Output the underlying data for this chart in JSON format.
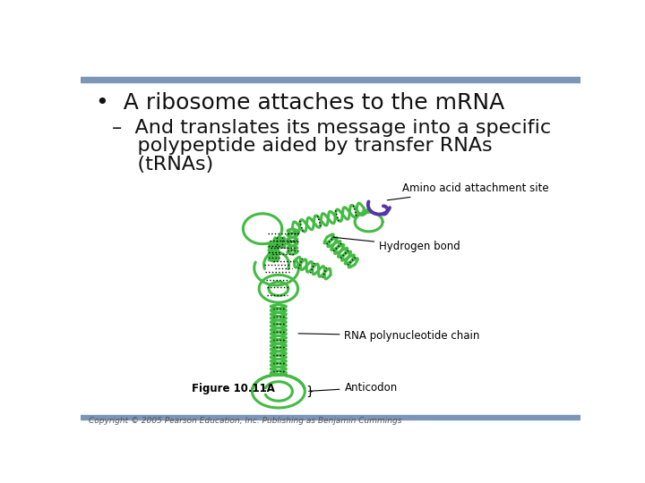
{
  "slide_bg": "#ffffff",
  "top_bar_color": "#7b96b8",
  "bottom_bar_color": "#7b96b8",
  "title_text": "•  A ribosome attaches to the mRNA",
  "subtitle_line1": "–  And translates its message into a specific",
  "subtitle_line2": "    polypeptide aided by transfer RNAs",
  "subtitle_line3": "    (tRNAs)",
  "title_fontsize": 18,
  "subtitle_fontsize": 16,
  "label_amino": "Amino acid attachment site",
  "label_hydrogen": "Hydrogen bond",
  "label_rna": "RNA polynucleotide chain",
  "label_anticodon": "Anticodon",
  "figure_label": "Figure 10.11A",
  "copyright": "Copyright © 2005 Pearson Education, Inc. Publishing as Benjamin Cummings",
  "green_color": "#44bb44",
  "purple_color": "#5533aa",
  "text_color": "#111111",
  "label_fontsize": 8.5,
  "fig_label_fontsize": 8.5
}
